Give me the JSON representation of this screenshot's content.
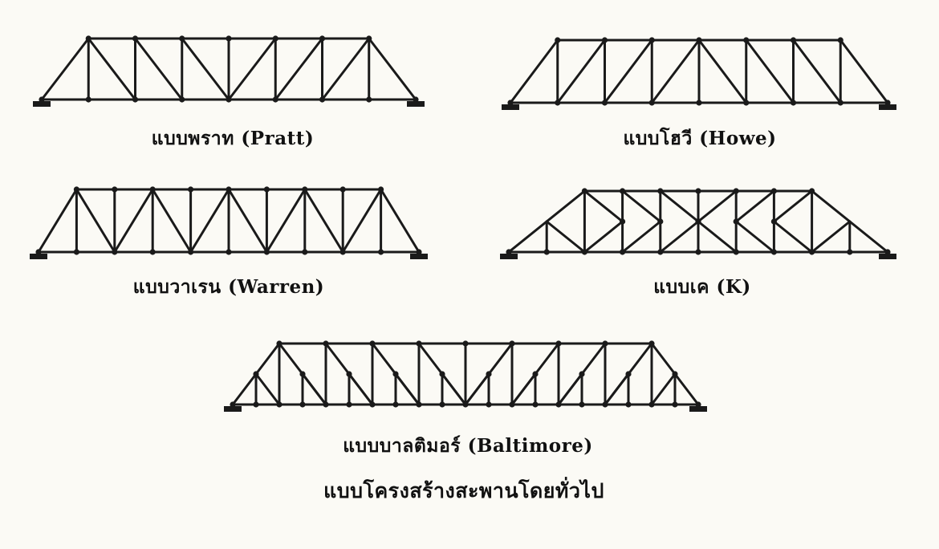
{
  "labels": {
    "pratt": "แบบพราท (Pratt)",
    "howe": "แบบโฮวี (Howe)",
    "warren": "แบบวาเรน (Warren)",
    "k": "แบบเค (K)",
    "baltimore": "แบบบาลติมอร์ (Baltimore)"
  },
  "caption": "แบบโครงสร้างสะพานโดยทั่วไป",
  "colors": {
    "ink": "#1a1a1a",
    "paper": "#fbfaf5"
  }
}
